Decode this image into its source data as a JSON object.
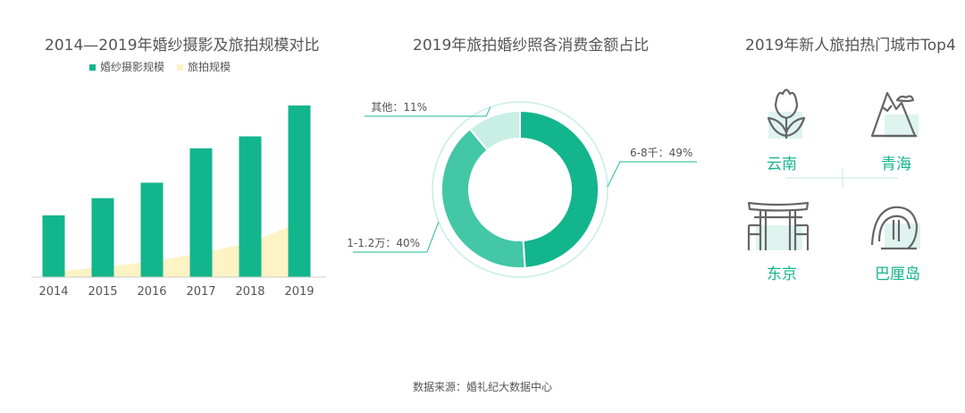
{
  "colors": {
    "green": "#13b58d",
    "mid_green": "#43c7a6",
    "light_green": "#c9efe4",
    "cream": "#fdf3c4",
    "text": "#555555",
    "line": "#cccccc"
  },
  "chart_data": [
    {
      "type": "bar",
      "title": "2014—2019年婚纱摄影及旅拍规模对比",
      "categories": [
        "2014",
        "2015",
        "2016",
        "2017",
        "2018",
        "2019"
      ],
      "series": [
        {
          "name": "婚纱摄影规模",
          "values": [
            36,
            46,
            55,
            75,
            82,
            100
          ]
        },
        {
          "name": "旅拍规模",
          "values": [
            3,
            6,
            9,
            14,
            20,
            32
          ]
        }
      ],
      "legend_position": "top",
      "grid": false,
      "ylim": [
        0,
        100
      ]
    },
    {
      "type": "pie",
      "title": "2019年旅拍婚纱照各消费金额占比",
      "slices": [
        {
          "label": "6-8千：49%",
          "value": 49
        },
        {
          "label": "1-1.2万：40%",
          "value": 40
        },
        {
          "label": "其他：11%",
          "value": 11
        }
      ]
    }
  ],
  "top4": {
    "title": "2019年新人旅拍热门城市Top4",
    "cities": [
      {
        "name": "云南",
        "icon": "tulip-icon"
      },
      {
        "name": "青海",
        "icon": "mountain-icon"
      },
      {
        "name": "东京",
        "icon": "torii-gate-icon"
      },
      {
        "name": "巴厘岛",
        "icon": "palm-tree-icon"
      }
    ]
  },
  "footer": {
    "source": "数据来源：婚礼纪大数据中心"
  }
}
